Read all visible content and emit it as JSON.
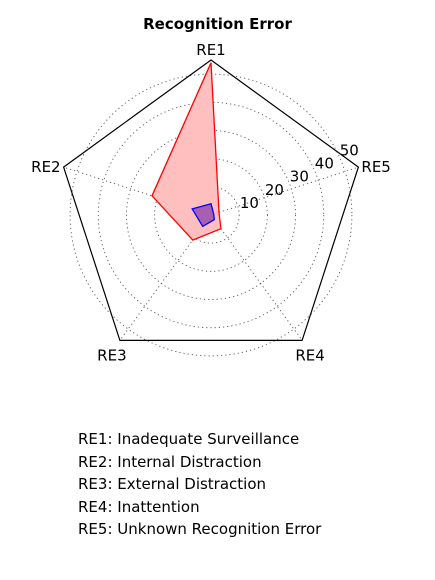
{
  "chart_data": {
    "type": "radar",
    "title": "Recognition Error",
    "axes": [
      "RE1",
      "RE2",
      "RE3",
      "RE4",
      "RE5"
    ],
    "rlim": [
      0,
      55
    ],
    "rticks": [
      "10",
      "20",
      "30",
      "40",
      "50"
    ],
    "rtick_values": [
      10,
      20,
      30,
      40,
      50
    ],
    "grid": true,
    "series": [
      {
        "color": "#ff0000",
        "fill": "#ffbfbf",
        "values": [
          54,
          22,
          11,
          6,
          3
        ]
      },
      {
        "color": "#0000ff",
        "fill": "#8a3fb0",
        "values": [
          4,
          7,
          5,
          2,
          1
        ]
      }
    ],
    "notes": [
      "RE1: Inadequate Surveillance",
      "RE2: Internal Distraction",
      "RE3: External Distraction",
      "RE4: Inattention",
      "RE5: Unknown Recognition Error"
    ]
  }
}
